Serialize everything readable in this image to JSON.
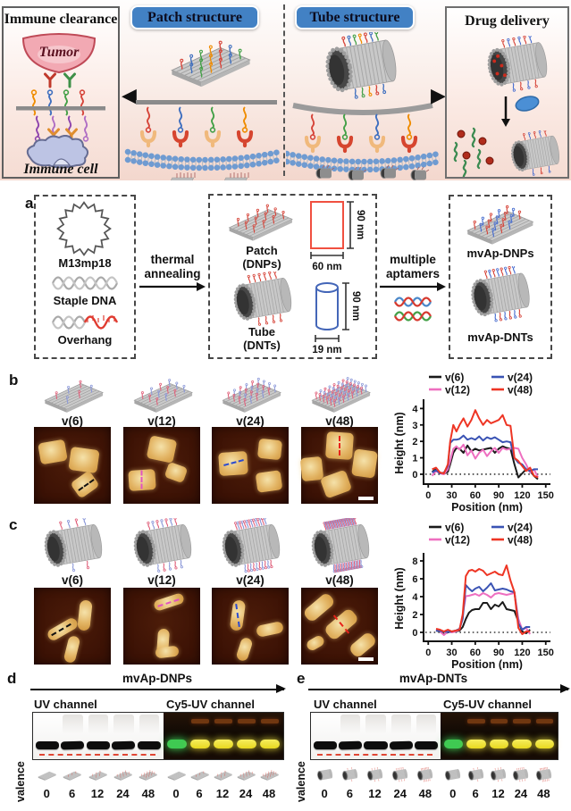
{
  "icons": {
    "arrow_left": "◀",
    "arrow_right": "▶"
  },
  "colors": {
    "accent_blue": "#4281c4",
    "overhang_red": "#e03c31",
    "rect_red": "#f05040",
    "cylinder_blue": "#4466b8",
    "afm_background": "#3c1205",
    "afm_gold": "#e3b565",
    "gel_green": "#3fca52",
    "gel_yellow": "#ecd92a"
  },
  "banner": {
    "immune_title": "Immune clearance",
    "tumor": "Tumor",
    "immune_cell": "Immune cell",
    "patch_title": "Patch structure",
    "tube_title": "Tube structure",
    "drug_title": "Drug delivery"
  },
  "panel_a": {
    "label": "a",
    "m13": "M13mp18",
    "staple": "Staple DNA",
    "overhang": "Overhang",
    "step1_line1": "thermal",
    "step1_line2": "annealing",
    "patch_name": "Patch",
    "patch_sub": "(DNPs)",
    "tube_name": "Tube",
    "tube_sub": "(DNTs)",
    "patch_height": "90 nm",
    "patch_width": "60 nm",
    "tube_height": "90 nm",
    "tube_width": "19 nm",
    "step2_line1": "multiple",
    "step2_line2": "aptamers",
    "out_patch": "mvAp-DNPs",
    "out_tube": "mvAp-DNTs"
  },
  "panel_b": {
    "label": "b",
    "variants": [
      {
        "label": "v(6)",
        "n": 6
      },
      {
        "label": "v(12)",
        "n": 12
      },
      {
        "label": "v(24)",
        "n": 24
      },
      {
        "label": "v(48)",
        "n": 48
      }
    ]
  },
  "panel_c": {
    "label": "c",
    "variants": [
      {
        "label": "v(6)",
        "n": 6
      },
      {
        "label": "v(12)",
        "n": 12
      },
      {
        "label": "v(24)",
        "n": 24
      },
      {
        "label": "v(48)",
        "n": 48
      }
    ]
  },
  "chart_data": [
    {
      "type": "line",
      "title": "",
      "xlabel": "Position (nm)",
      "ylabel": "Height (nm)",
      "xlim": [
        0,
        150
      ],
      "ylim": [
        -0.6,
        4.4
      ],
      "xticks": [
        0,
        30,
        60,
        90,
        120,
        150
      ],
      "yticks": [
        0,
        1,
        2,
        3,
        4
      ],
      "grid": false,
      "legend_position": "top",
      "zero_dotted_line": true,
      "x": [
        5,
        10,
        15,
        20,
        25,
        28,
        32,
        36,
        40,
        45,
        50,
        55,
        60,
        65,
        70,
        75,
        80,
        85,
        90,
        95,
        100,
        105,
        110,
        115,
        120,
        125,
        130,
        135,
        140
      ],
      "series": [
        {
          "name": "v(6)",
          "color": "#1a1a1a",
          "values": [
            0.15,
            0.3,
            0.1,
            0.02,
            0.15,
            0.6,
            1.3,
            1.6,
            1.55,
            1.3,
            1.75,
            1.4,
            1.55,
            1.45,
            1.5,
            1.55,
            1.6,
            1.3,
            1.55,
            1.7,
            1.6,
            1.55,
            0.6,
            -0.2,
            0.05,
            0.3,
            0.2,
            -0.1,
            -0.3
          ]
        },
        {
          "name": "v(12)",
          "color": "#ee6fc0",
          "values": [
            -0.1,
            0.2,
            0.05,
            0.0,
            0.3,
            0.8,
            1.55,
            1.7,
            1.5,
            1.8,
            1.15,
            1.45,
            0.95,
            1.3,
            1.5,
            1.1,
            1.4,
            1.6,
            1.3,
            1.6,
            1.5,
            1.55,
            1.6,
            1.55,
            1.0,
            0.6,
            0.1,
            0.3,
            -0.2
          ]
        },
        {
          "name": "v(24)",
          "color": "#3a53b4",
          "values": [
            0.1,
            0.25,
            0.05,
            0.1,
            0.5,
            1.9,
            2.1,
            2.1,
            2.15,
            2.35,
            2.1,
            2.2,
            2.1,
            2.3,
            2.05,
            2.25,
            2.15,
            2.25,
            2.1,
            1.95,
            2.0,
            1.95,
            1.0,
            0.7,
            0.6,
            0.3,
            0.2,
            0.3,
            0.3
          ]
        },
        {
          "name": "v(48)",
          "color": "#ee3524",
          "values": [
            0.3,
            0.4,
            0.1,
            0.05,
            0.6,
            2.0,
            3.0,
            2.6,
            3.0,
            3.4,
            2.9,
            3.3,
            3.9,
            3.4,
            3.0,
            3.3,
            3.1,
            3.2,
            3.3,
            3.6,
            3.0,
            2.95,
            1.0,
            0.8,
            0.5,
            0.2,
            0.4,
            -0.1,
            -0.2
          ]
        }
      ]
    },
    {
      "type": "line",
      "title": "",
      "xlabel": "Position (nm)",
      "ylabel": "Height (nm)",
      "xlim": [
        0,
        150
      ],
      "ylim": [
        -1.0,
        8.6
      ],
      "xticks": [
        0,
        30,
        60,
        90,
        120,
        150
      ],
      "yticks": [
        0,
        2,
        4,
        6,
        8
      ],
      "grid": false,
      "legend_position": "top",
      "zero_dotted_line": true,
      "x": [
        10,
        15,
        20,
        25,
        30,
        35,
        40,
        44,
        48,
        52,
        56,
        60,
        65,
        70,
        75,
        80,
        85,
        90,
        95,
        100,
        105,
        110,
        115,
        120,
        125,
        130
      ],
      "series": [
        {
          "name": "v(6)",
          "color": "#1a1a1a",
          "values": [
            0.2,
            0.1,
            -0.2,
            0.0,
            0.1,
            0.1,
            0.2,
            0.6,
            1.5,
            2.2,
            2.5,
            2.6,
            2.6,
            3.3,
            3.3,
            2.6,
            3.1,
            2.9,
            3.4,
            2.6,
            2.5,
            2.4,
            1.2,
            0.1,
            -0.1,
            0.3
          ]
        },
        {
          "name": "v(12)",
          "color": "#ee6fc0",
          "values": [
            0.3,
            0.1,
            -0.3,
            0.1,
            0.0,
            0.1,
            0.3,
            2.0,
            4.05,
            4.1,
            4.2,
            4.3,
            4.1,
            4.4,
            4.2,
            3.9,
            4.3,
            4.4,
            4.3,
            4.2,
            4.3,
            4.4,
            1.5,
            0.3,
            0.5,
            -0.2
          ]
        },
        {
          "name": "v(24)",
          "color": "#3a53b4",
          "values": [
            0.2,
            0.15,
            0.1,
            0.05,
            0.1,
            0.2,
            0.4,
            1.5,
            5.3,
            4.9,
            4.6,
            4.9,
            5.1,
            4.6,
            5.0,
            5.5,
            4.7,
            4.8,
            4.9,
            4.8,
            4.6,
            4.5,
            1.0,
            0.3,
            0.6,
            0.6
          ]
        },
        {
          "name": "v(48)",
          "color": "#ee3524",
          "values": [
            0.4,
            0.3,
            0.1,
            0.3,
            0.1,
            0.2,
            0.3,
            2.0,
            6.3,
            6.9,
            7.0,
            6.8,
            7.1,
            6.9,
            6.4,
            6.6,
            6.8,
            6.5,
            6.4,
            7.5,
            5.8,
            4.5,
            0.5,
            -0.2,
            0.1,
            0.1
          ]
        }
      ]
    }
  ],
  "panel_d": {
    "label": "d",
    "title": "mvAp-DNPs",
    "uv": "UV channel",
    "cy5": "Cy5-UV channel",
    "valence_axis": "valence",
    "valences": [
      "0",
      "6",
      "12",
      "24",
      "48"
    ]
  },
  "panel_e": {
    "label": "e",
    "title": "mvAp-DNTs",
    "uv": "UV channel",
    "cy5": "Cy5-UV channel",
    "valence_axis": "valence",
    "valences": [
      "0",
      "6",
      "12",
      "24",
      "48"
    ]
  }
}
